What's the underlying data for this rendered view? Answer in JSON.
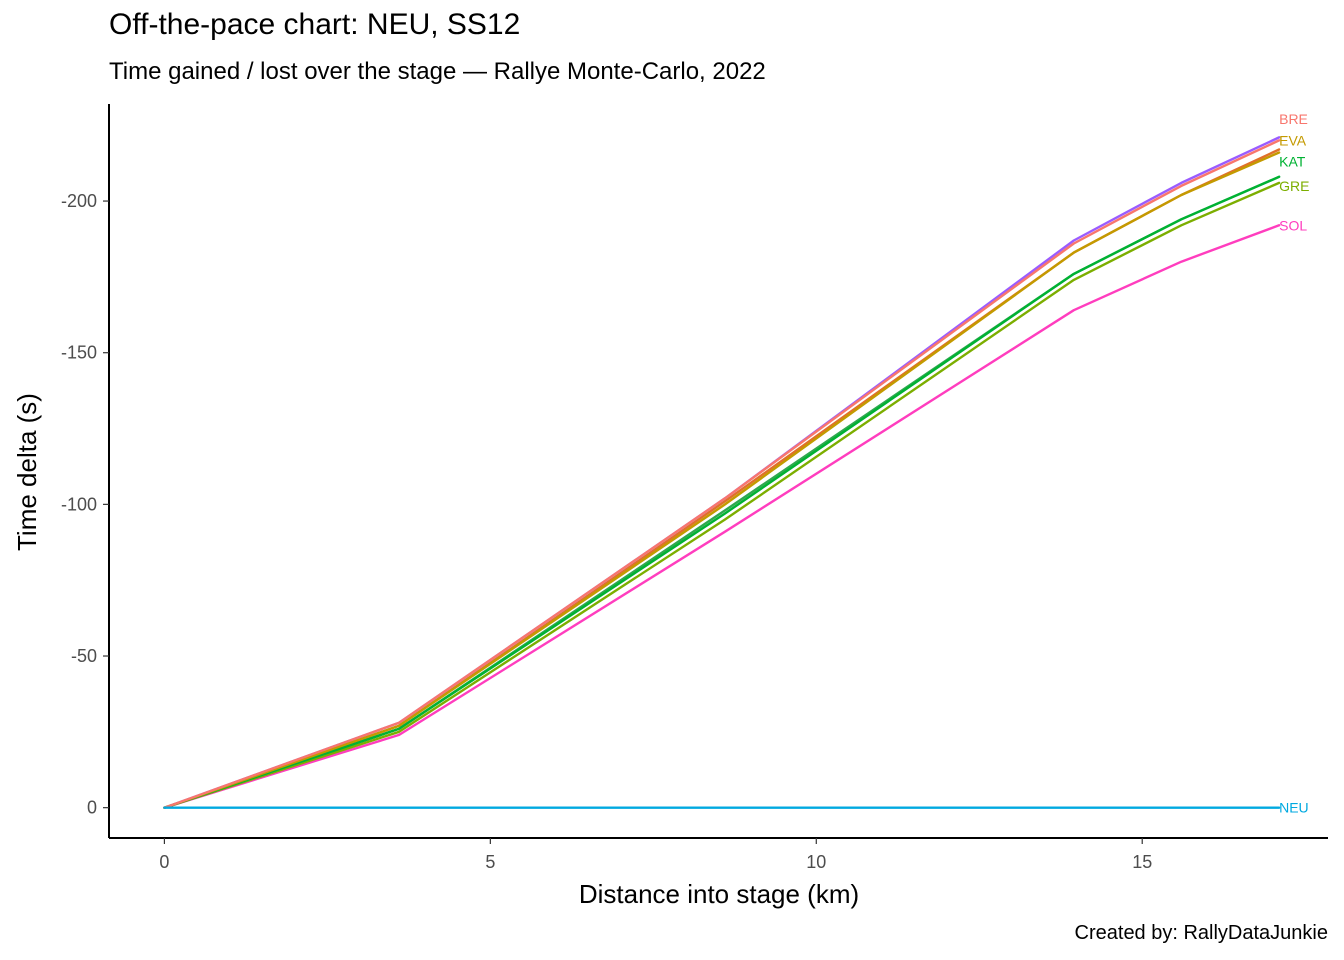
{
  "chart_data": {
    "type": "line",
    "title": "Off-the-pace chart: NEU, SS12",
    "subtitle": "Time gained / lost over the stage — Rallye Monte-Carlo, 2022",
    "xlabel": "Distance into stage (km)",
    "ylabel": "Time delta (s)",
    "caption": "Created by: RallyDataJunkie",
    "xlim": [
      -0.85,
      17.85
    ],
    "ylim": [
      10,
      -232
    ],
    "y_reversed": true,
    "x_ticks": [
      0,
      5,
      10,
      15
    ],
    "y_ticks": [
      0,
      -50,
      -100,
      -150,
      -200
    ],
    "x": [
      0,
      3.6,
      8.6,
      13.95,
      15.6,
      17.1
    ],
    "grid": false,
    "legend": "direct labels at line ends",
    "series": [
      {
        "name": "BRE",
        "color": "#F8766D",
        "values": [
          0,
          -28,
          -102,
          -186,
          -205,
          -220
        ]
      },
      {
        "name": "EVA",
        "color": "#C49A00",
        "values": [
          0,
          -27,
          -100,
          -183,
          -202,
          -216
        ]
      },
      {
        "name": "KAT",
        "color": "#00B233",
        "values": [
          0,
          -26,
          -97,
          -176,
          -194,
          -208
        ]
      },
      {
        "name": "GRE",
        "color": "#7CAE00",
        "values": [
          0,
          -25,
          -95,
          -174,
          -192,
          -206
        ]
      },
      {
        "name": "SOL",
        "color": "#FF3DBE",
        "values": [
          0,
          -24,
          -91,
          -164,
          -180,
          -192
        ]
      },
      {
        "name": "NEU",
        "color": "#00A9E0",
        "values": [
          0,
          0,
          0,
          0,
          0,
          0
        ]
      },
      {
        "name": "",
        "color": "#9A5CFF",
        "values": [
          0,
          -28,
          -102,
          -187,
          -206,
          -221
        ]
      },
      {
        "name": "",
        "color": "#E0702A",
        "values": [
          0,
          -27,
          -101,
          -183,
          -202,
          -217
        ]
      },
      {
        "name": "",
        "color": "#2FA84F",
        "values": [
          0,
          -26,
          -98,
          -176,
          -194,
          -208
        ]
      }
    ],
    "label_positions_y": {
      "BRE": -227,
      "EVA": -220,
      "KAT": -213,
      "GRE": -205,
      "SOL": -192,
      "NEU": 0
    }
  }
}
